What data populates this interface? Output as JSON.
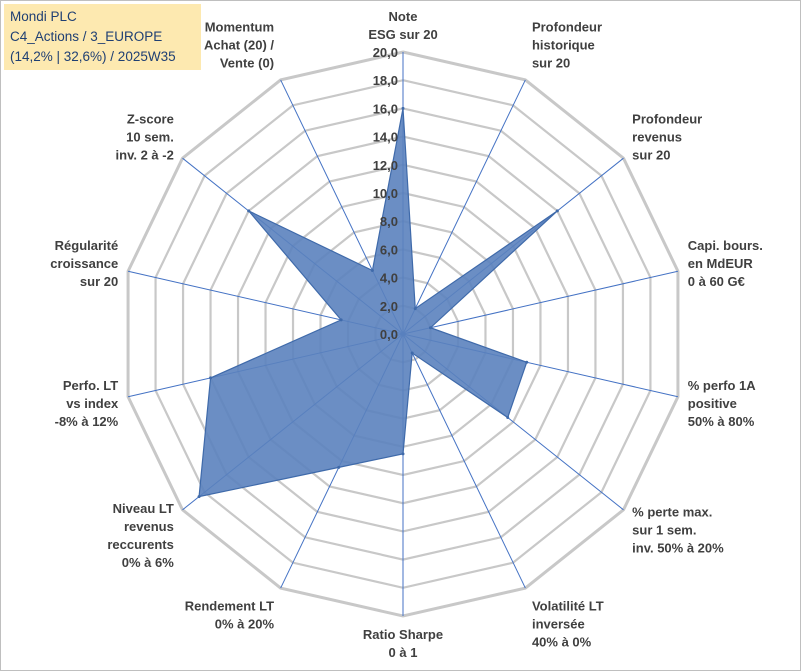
{
  "title_box": {
    "line1": "Mondi PLC",
    "line2": "C4_Actions / 3_EUROPE",
    "line3": "(14,2% | 32,6%) / 2025W35"
  },
  "chart_data": {
    "type": "radar",
    "axes": [
      [
        "Note",
        "ESG sur 20"
      ],
      [
        "Profondeur",
        "historique",
        "sur 20"
      ],
      [
        "Profondeur",
        "revenus",
        "sur 20"
      ],
      [
        "Capi. bours.",
        "en MdEUR",
        "0 à 60 G€"
      ],
      [
        "% perfo 1A",
        "positive",
        "50% à 80%"
      ],
      [
        "% perte max.",
        "sur 1 sem.",
        "inv. 50% à 20%"
      ],
      [
        "Volatilité LT",
        "inversée",
        "40% à 0%"
      ],
      [
        "Ratio Sharpe",
        "0 à 1"
      ],
      [
        "Rendement LT",
        "0% à 20%"
      ],
      [
        "Niveau LT",
        "revenus",
        "reccurents",
        "0% à 6%"
      ],
      [
        "Perfo. LT",
        "vs index",
        "-8% à 12%"
      ],
      [
        "Régularité",
        "croissance",
        "sur 20"
      ],
      [
        "Z-score",
        "10 sem.",
        "inv. 2 à -2"
      ],
      [
        "Momentum",
        "Achat (20) /",
        "Vente (0)"
      ]
    ],
    "series": [
      {
        "values": [
          16.0,
          2.0,
          14.0,
          2.0,
          9.0,
          9.5,
          1.5,
          8.5,
          10.5,
          18.5,
          14.0,
          4.5,
          14.0,
          5.0
        ]
      }
    ],
    "rmax": 20,
    "ticks": [
      "0,0",
      "2,0",
      "4,0",
      "6,0",
      "8,0",
      "10,0",
      "12,0",
      "14,0",
      "16,0",
      "18,0",
      "20,0"
    ],
    "colors": {
      "fill": "#5b82be",
      "stroke": "#3f6aaa",
      "grid": "#c8c8c8",
      "spoke": "#4472c4"
    }
  }
}
